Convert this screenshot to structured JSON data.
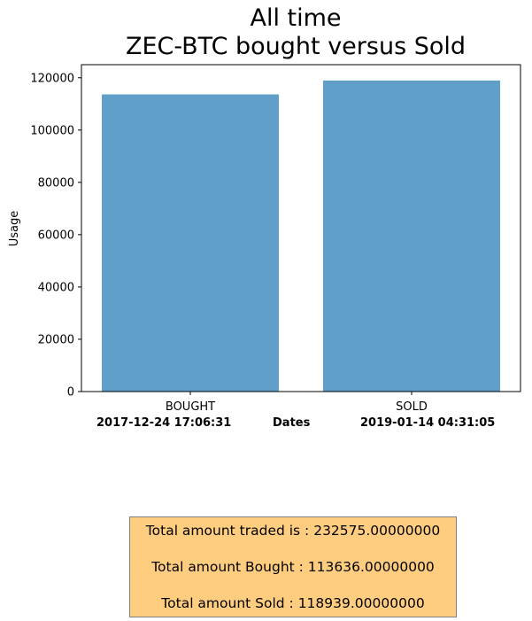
{
  "chart_data": {
    "type": "bar",
    "title_lines": [
      "All time",
      "ZEC-BTC bought versus Sold"
    ],
    "categories": [
      "BOUGHT",
      "SOLD"
    ],
    "values": [
      113636,
      118939
    ],
    "ylabel": "Usage",
    "ylim": [
      0,
      125000
    ],
    "yticks": [
      0,
      20000,
      40000,
      60000,
      80000,
      100000,
      120000
    ],
    "bar_color": "#5f9fca",
    "grid": false,
    "x_annotations": {
      "left_date": "2017-12-24 17:06:31",
      "center_label": "Dates",
      "right_date": "2019-01-14 04:31:05"
    }
  },
  "summary": {
    "total_traded": "Total amount traded is : 232575.00000000",
    "total_bought": "Total amount Bought : 113636.00000000",
    "total_sold": "Total amount Sold : 118939.00000000",
    "box_color": "#ffcd7f"
  }
}
